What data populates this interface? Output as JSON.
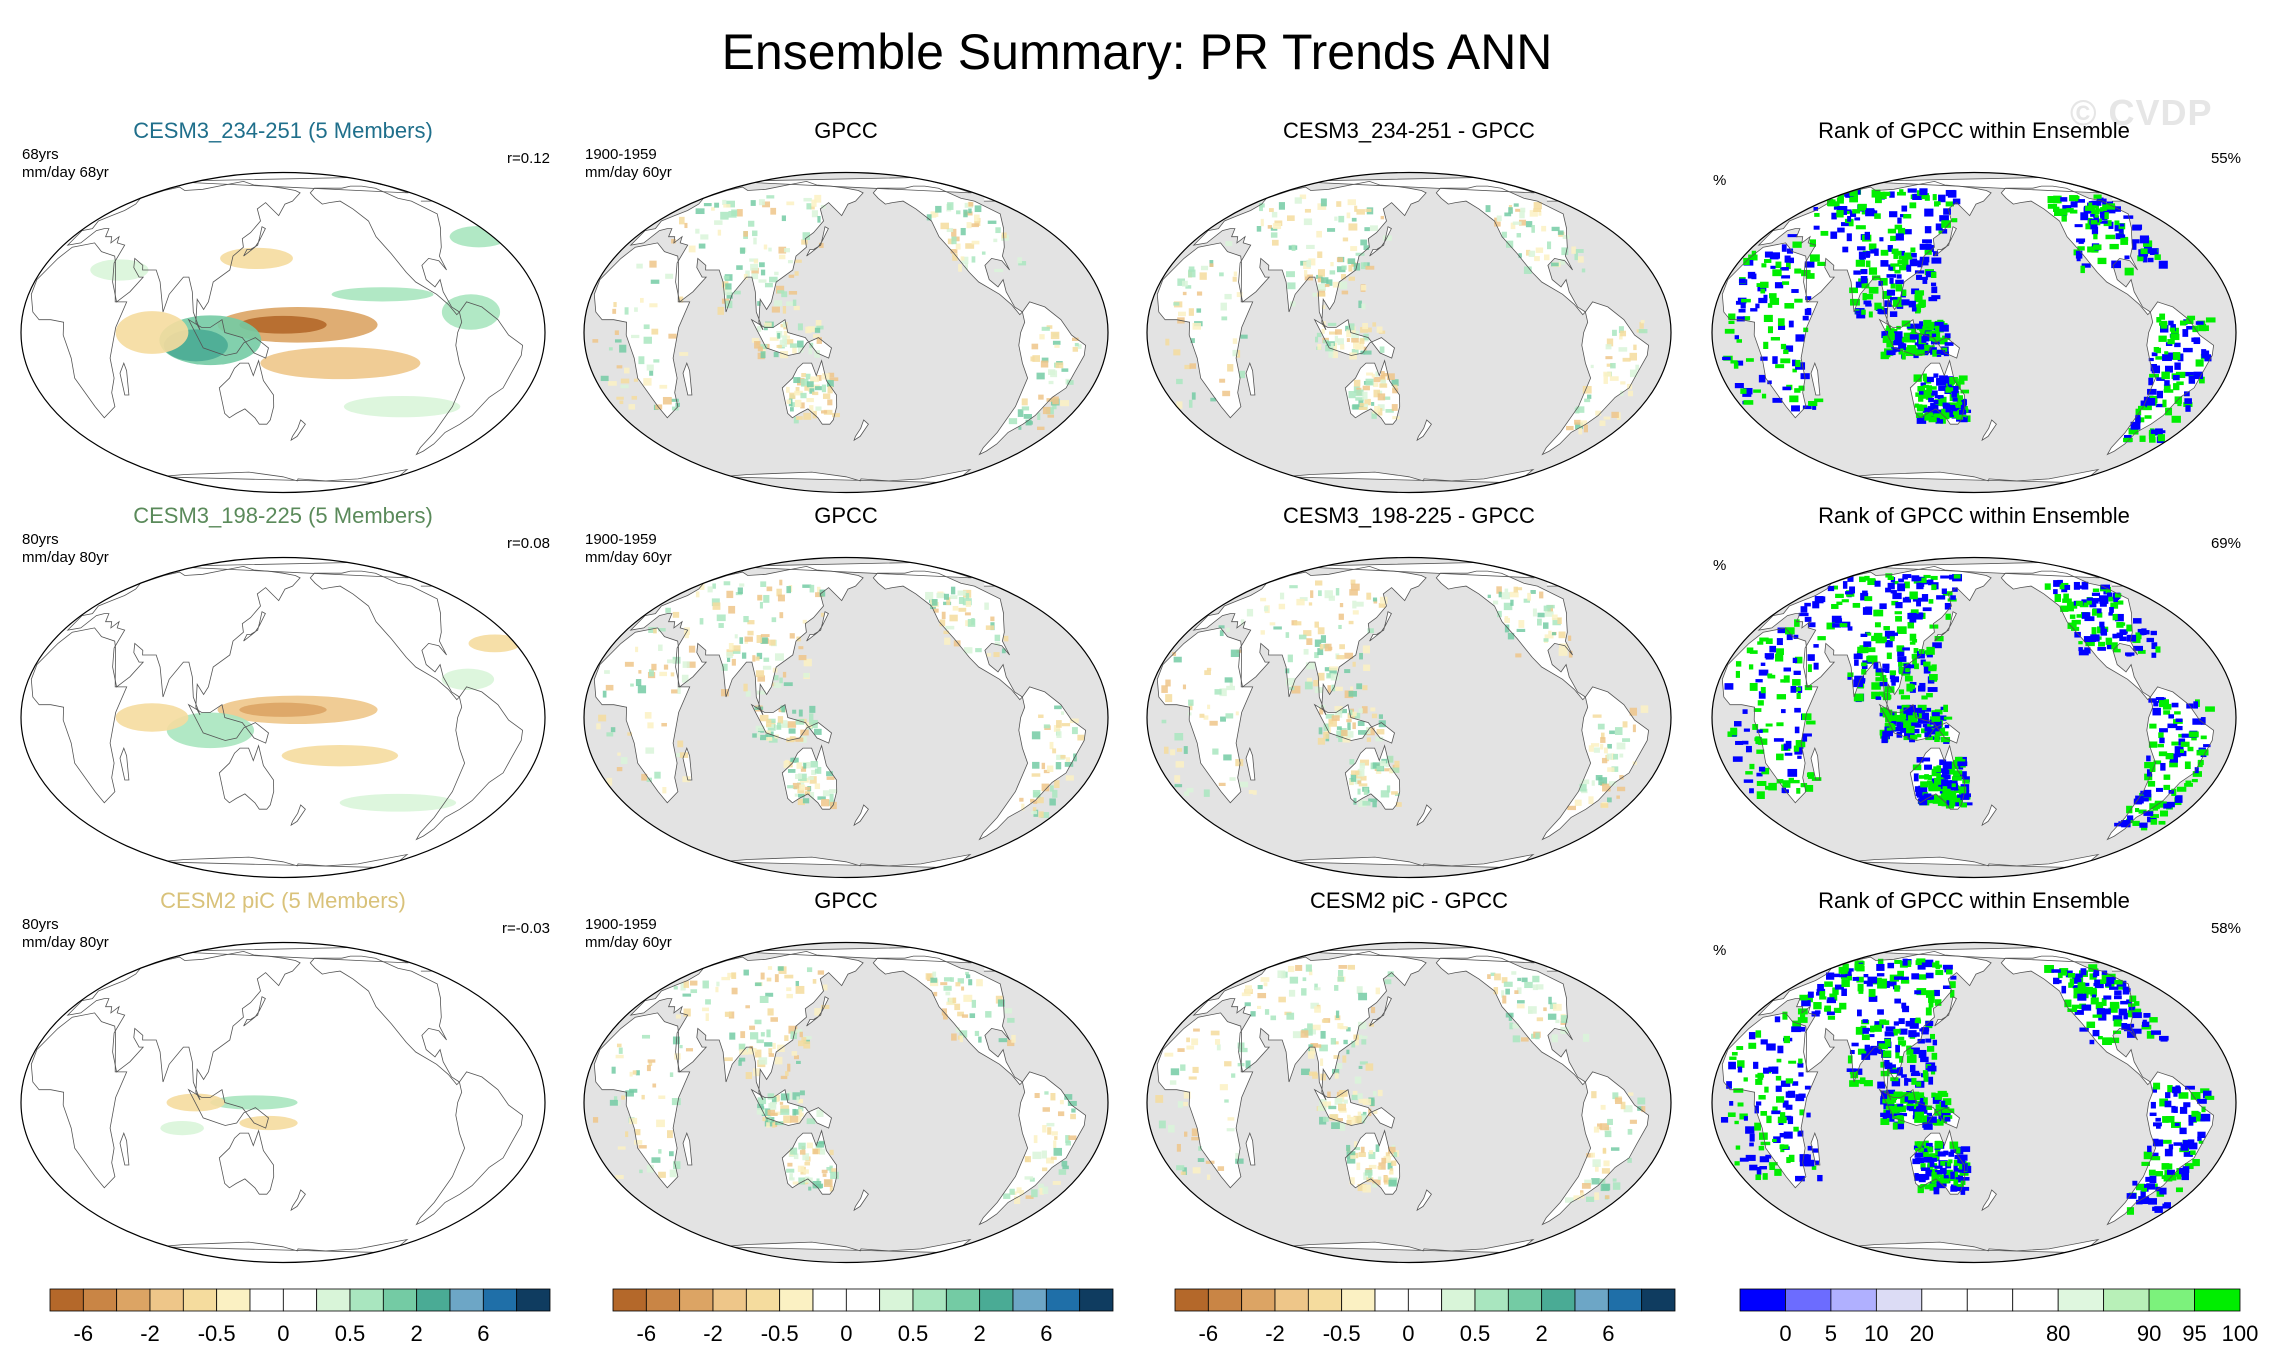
{
  "title": "Ensemble Summary: PR Trends ANN",
  "watermark": "© CVDP",
  "rows": [
    {
      "model": {
        "title": "CESM3_234-251 (5 Members)",
        "title_color": "#1f6f8b",
        "years": "68yrs",
        "units": "mm/day 68yr",
        "corr": "r=0.12",
        "pattern": "strong"
      },
      "obs": {
        "title": "GPCC",
        "period": "1900-1959",
        "units": "mm/day 60yr"
      },
      "diff": {
        "title": "CESM3_234-251 - GPCC"
      },
      "rank": {
        "title": "Rank of GPCC within Ensemble",
        "units": "%",
        "percent": "55%"
      }
    },
    {
      "model": {
        "title": "CESM3_198-225 (5 Members)",
        "title_color": "#5a8a5a",
        "years": "80yrs",
        "units": "mm/day 80yr",
        "corr": "r=0.08",
        "pattern": "medium"
      },
      "obs": {
        "title": "GPCC",
        "period": "1900-1959",
        "units": "mm/day 60yr"
      },
      "diff": {
        "title": "CESM3_198-225 - GPCC"
      },
      "rank": {
        "title": "Rank of GPCC within Ensemble",
        "units": "%",
        "percent": "69%"
      }
    },
    {
      "model": {
        "title": "CESM2 piC (5 Members)",
        "title_color": "#d9c27a",
        "years": "80yrs",
        "units": "mm/day 80yr",
        "corr": "r=-0.03",
        "pattern": "weak"
      },
      "obs": {
        "title": "GPCC",
        "period": "1900-1959",
        "units": "mm/day 60yr"
      },
      "diff": {
        "title": "CESM2 piC - GPCC"
      },
      "rank": {
        "title": "Rank of GPCC within Ensemble",
        "units": "%",
        "percent": "58%"
      }
    }
  ],
  "colorbar_trend": {
    "colors": [
      "#b4682a",
      "#c98545",
      "#dca464",
      "#eec689",
      "#f5dc9e",
      "#fbf1c3",
      "#ffffff",
      "#ffffff",
      "#d9f5d9",
      "#a9e6bf",
      "#74cba4",
      "#4aab95",
      "#6da6c6",
      "#1f6fa8",
      "#0f3c60"
    ],
    "labels": [
      "-6",
      "-2",
      "-0.5",
      "0",
      "0.5",
      "2",
      "6"
    ],
    "label_slots": [
      1,
      3,
      5,
      7,
      9,
      11,
      13
    ]
  },
  "colorbar_rank": {
    "colors": [
      "#0000ff",
      "#6c6cff",
      "#b0b0ff",
      "#dcdcf5",
      "#ffffff",
      "#ffffff",
      "#ffffff",
      "#dff7df",
      "#b8f0b8",
      "#7cf27c",
      "#00ee00"
    ],
    "labels": [
      "0",
      "5",
      "10",
      "20",
      "80",
      "90",
      "95",
      "100"
    ],
    "label_slots": [
      1,
      2,
      3,
      4,
      7,
      9,
      10,
      11
    ]
  },
  "chart_data": {
    "type": "map",
    "title": "Ensemble Summary: PR Trends ANN",
    "variable": "PR",
    "season": "ANN",
    "panels": [
      {
        "row": 1,
        "type": "model",
        "title": "CESM3_234-251 (5 Members)",
        "years": "68yrs",
        "units": "mm/day 68yr",
        "r": 0.12
      },
      {
        "row": 1,
        "type": "obs",
        "title": "GPCC",
        "period": "1900-1959",
        "units": "mm/day 60yr"
      },
      {
        "row": 1,
        "type": "diff",
        "title": "CESM3_234-251 - GPCC"
      },
      {
        "row": 1,
        "type": "rank",
        "title": "Rank of GPCC within Ensemble",
        "percent": 55
      },
      {
        "row": 2,
        "type": "model",
        "title": "CESM3_198-225 (5 Members)",
        "years": "80yrs",
        "units": "mm/day 80yr",
        "r": 0.08
      },
      {
        "row": 2,
        "type": "obs",
        "title": "GPCC",
        "period": "1900-1959",
        "units": "mm/day 60yr"
      },
      {
        "row": 2,
        "type": "diff",
        "title": "CESM3_198-225 - GPCC"
      },
      {
        "row": 2,
        "type": "rank",
        "title": "Rank of GPCC within Ensemble",
        "percent": 69
      },
      {
        "row": 3,
        "type": "model",
        "title": "CESM2 piC (5 Members)",
        "years": "80yrs",
        "units": "mm/day 80yr",
        "r": -0.03
      },
      {
        "row": 3,
        "type": "obs",
        "title": "GPCC",
        "period": "1900-1959",
        "units": "mm/day 60yr"
      },
      {
        "row": 3,
        "type": "diff",
        "title": "CESM2 piC - GPCC"
      },
      {
        "row": 3,
        "type": "rank",
        "title": "Rank of GPCC within Ensemble",
        "percent": 58
      }
    ],
    "trend_levels": [
      -6,
      -2,
      -0.5,
      0,
      0.5,
      2,
      6
    ],
    "rank_levels": [
      0,
      5,
      10,
      20,
      80,
      90,
      95,
      100
    ]
  }
}
